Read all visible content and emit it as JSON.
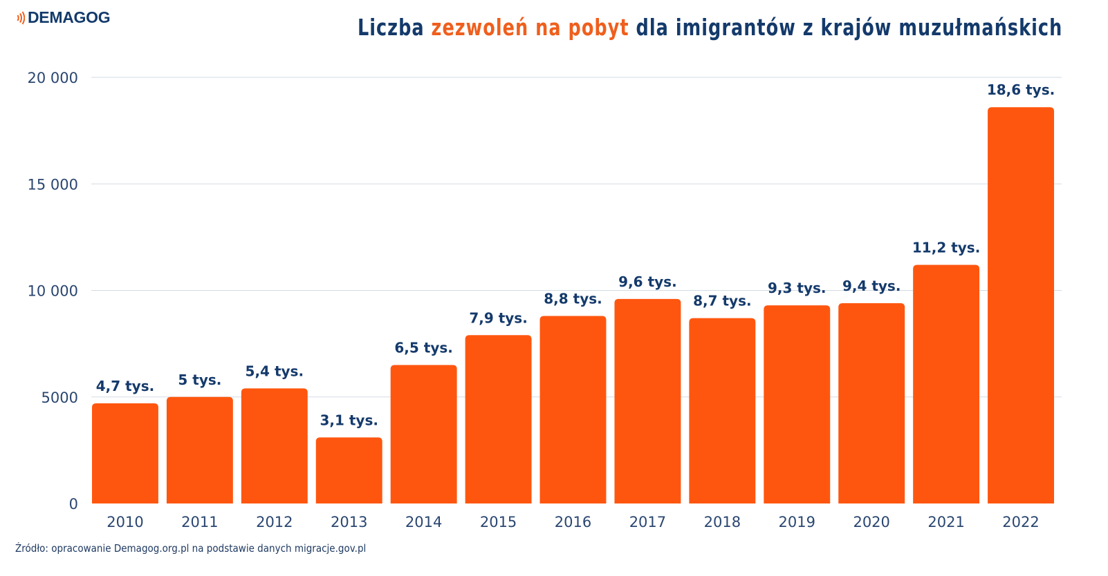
{
  "logo": {
    "text": "DEMAGOG",
    "icon": "sound-waves-icon",
    "icon_color": "#ef5f1d"
  },
  "title": {
    "part1": "Liczba ",
    "part2_highlight": "zezwoleń na pobyt",
    "part3": " dla imigrantów z krajów muzułmańskich"
  },
  "source": "Źródło: opracowanie Demagog.org.pl na podstawie danych migracje.gov.pl",
  "colors": {
    "bar": "#ff560f",
    "text_dark": "#143a6b",
    "accent": "#ef5f1d",
    "grid": "#d3dae3"
  },
  "chart_data": {
    "type": "bar",
    "title": "Liczba zezwoleń na pobyt dla imigrantów z krajów muzułmańskich",
    "xlabel": "",
    "ylabel": "",
    "categories": [
      "2010",
      "2011",
      "2012",
      "2013",
      "2014",
      "2015",
      "2016",
      "2017",
      "2018",
      "2019",
      "2020",
      "2021",
      "2022"
    ],
    "values": [
      4700,
      5000,
      5400,
      3100,
      6500,
      7900,
      8800,
      9600,
      8700,
      9300,
      9400,
      11200,
      18600
    ],
    "data_labels": [
      "4,7 tys.",
      "5 tys.",
      "5,4 tys.",
      "3,1 tys.",
      "6,5 tys.",
      "7,9 tys.",
      "8,8 tys.",
      "9,6 tys.",
      "8,7 tys.",
      "9,3 tys.",
      "9,4 tys.",
      "11,2 tys.",
      "18,6 tys."
    ],
    "ylim": [
      0,
      20000
    ],
    "yticks": [
      0,
      5000,
      10000,
      15000,
      20000
    ],
    "ytick_labels": [
      "0",
      "5000",
      "10 000",
      "15 000",
      "20 000"
    ],
    "grid": true,
    "legend": "none"
  }
}
